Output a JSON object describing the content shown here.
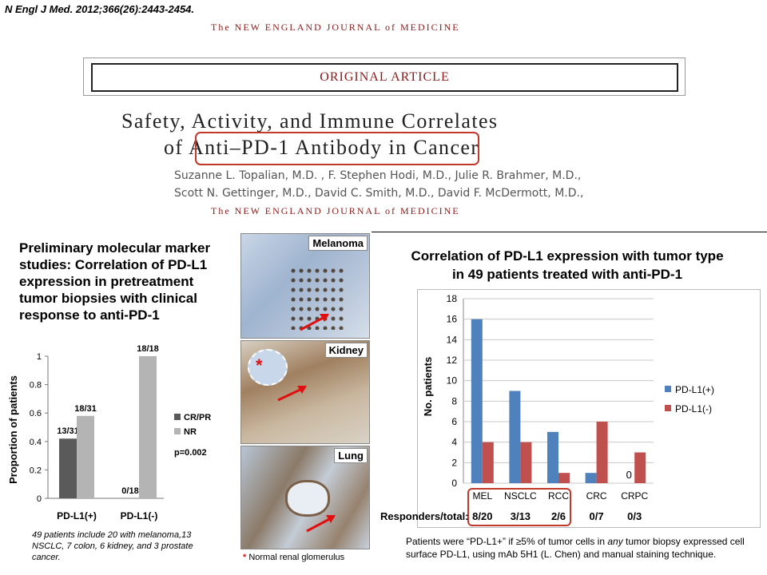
{
  "citation": {
    "journal": "N Engl J Med.",
    "ref": " 2012;366(26):2443-2454."
  },
  "masthead": "The NEW ENGLAND JOURNAL of MEDICINE",
  "article_type": "ORIGINAL ARTICLE",
  "article": {
    "title_line1": "Safety, Activity, and Immune Correlates",
    "title_of": "of",
    "title_highlight": "Anti–PD-1 Antibody",
    "title_end": "in Cancer",
    "authors_line1": "Suzanne L. Topalian, M.D. , F. Stephen Hodi, M.D., Julie R. Brahmer, M.D.,",
    "authors_line2": "Scott N. Gettinger, M.D., David C. Smith, M.D., David F. McDermott, M.D.,"
  },
  "left_heading": "Preliminary molecular marker studies: Correlation of PD-L1 expression in pretreatment tumor biopsies with clinical response to anti-PD-1",
  "left_footnote": "49 patients include 20 with melanoma,13 NSCLC, 7 colon, 6 kidney, and 3 prostate cancer.",
  "images": {
    "panels": [
      "Melanoma",
      "Kidney",
      "Lung"
    ],
    "asterisk": "*",
    "caption_star": "*",
    "caption": " Normal renal glomerulus"
  },
  "right_note": {
    "p1": "Patients were “PD-L1+” if  ≥5% of tumor cells in ",
    "em": "any",
    "p2": " tumor biopsy expressed cell surface PD-L1, using mAb 5H1 (L. Chen) and manual staining technique."
  },
  "responders_label": "Responders/total:",
  "colors": {
    "crpr": "#5a5a5a",
    "nr": "#b4b4b4",
    "pdl1_pos": "#4f81bd",
    "pdl1_neg": "#c0504d",
    "highlight": "#c0392b",
    "nejm": "#8b1a1a"
  },
  "chart_data": [
    {
      "type": "bar",
      "ylabel": "Proportion of patients",
      "categories": [
        "PD-L1(+)",
        "PD-L1(-)"
      ],
      "series": [
        {
          "name": "CR/PR",
          "values": [
            0.42,
            0
          ],
          "labels": [
            "13/31",
            "0/18"
          ]
        },
        {
          "name": "NR",
          "values": [
            0.58,
            1.0
          ],
          "labels": [
            "18/31",
            "18/18"
          ]
        }
      ],
      "yticks": [
        "0",
        "0.2",
        "0.4",
        "0.6",
        "0.8",
        "1"
      ],
      "ylim": [
        0,
        1
      ],
      "annotation": "p=0.002",
      "legend": "right"
    },
    {
      "type": "bar",
      "title_line1": "Correlation of PD-L1 expression with tumor type",
      "title_line2": "in 49 patients treated with anti-PD-1",
      "ylabel": "No. patients",
      "categories": [
        "MEL",
        "NSCLC",
        "RCC",
        "CRC",
        "CRPC"
      ],
      "series": [
        {
          "name": "PD-L1(+)",
          "values": [
            16,
            9,
            5,
            1,
            0
          ]
        },
        {
          "name": "PD-L1(-)",
          "values": [
            4,
            4,
            1,
            6,
            3
          ]
        }
      ],
      "yticks": [
        "0",
        "2",
        "4",
        "6",
        "8",
        "10",
        "12",
        "14",
        "16",
        "18"
      ],
      "ylim": [
        0,
        18
      ],
      "zero_label": "0",
      "responders": [
        "8/20",
        "3/13",
        "2/6",
        "0/7",
        "0/3"
      ],
      "legend": "right"
    }
  ]
}
